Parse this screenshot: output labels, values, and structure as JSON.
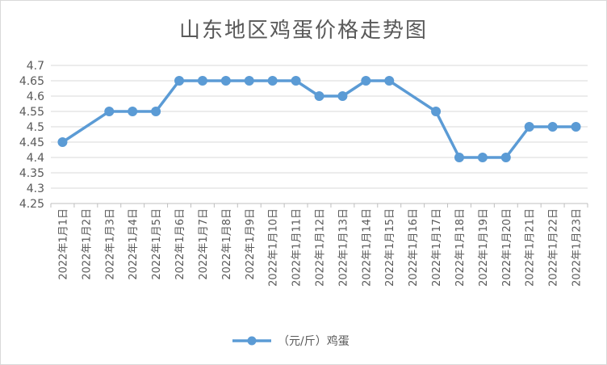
{
  "chart_data": {
    "type": "line",
    "title": "山东地区鸡蛋价格走势图",
    "xlabel": "",
    "ylabel": "",
    "categories": [
      "2022年1月1日",
      "2022年1月2日",
      "2022年1月3日",
      "2022年1月4日",
      "2022年1月5日",
      "2022年1月6日",
      "2022年1月7日",
      "2022年1月8日",
      "2022年1月9日",
      "2022年1月10日",
      "2022年1月11日",
      "2022年1月12日",
      "2022年1月13日",
      "2022年1月14日",
      "2022年1月15日",
      "2022年1月16日",
      "2022年1月17日",
      "2022年1月18日",
      "2022年1月19日",
      "2022年1月20日",
      "2022年1月21日",
      "2022年1月22日",
      "2022年1月23日"
    ],
    "series": [
      {
        "name": "（元/斤）鸡蛋",
        "values": [
          4.45,
          null,
          4.55,
          4.55,
          4.55,
          4.65,
          4.65,
          4.65,
          4.65,
          4.65,
          4.65,
          4.6,
          4.6,
          4.65,
          4.65,
          null,
          4.55,
          4.4,
          4.4,
          4.4,
          4.5,
          4.5,
          4.5
        ]
      }
    ],
    "ylim": [
      4.25,
      4.7
    ],
    "yticks": [
      "4.25",
      "4.3",
      "4.35",
      "4.4",
      "4.45",
      "4.5",
      "4.55",
      "4.6",
      "4.65",
      "4.7"
    ],
    "grid": true,
    "legend": "bottom",
    "colors": {
      "series": "#5b9bd5",
      "grid": "#d9d9d9",
      "axis": "#bfbfbf",
      "text": "#595959"
    }
  }
}
